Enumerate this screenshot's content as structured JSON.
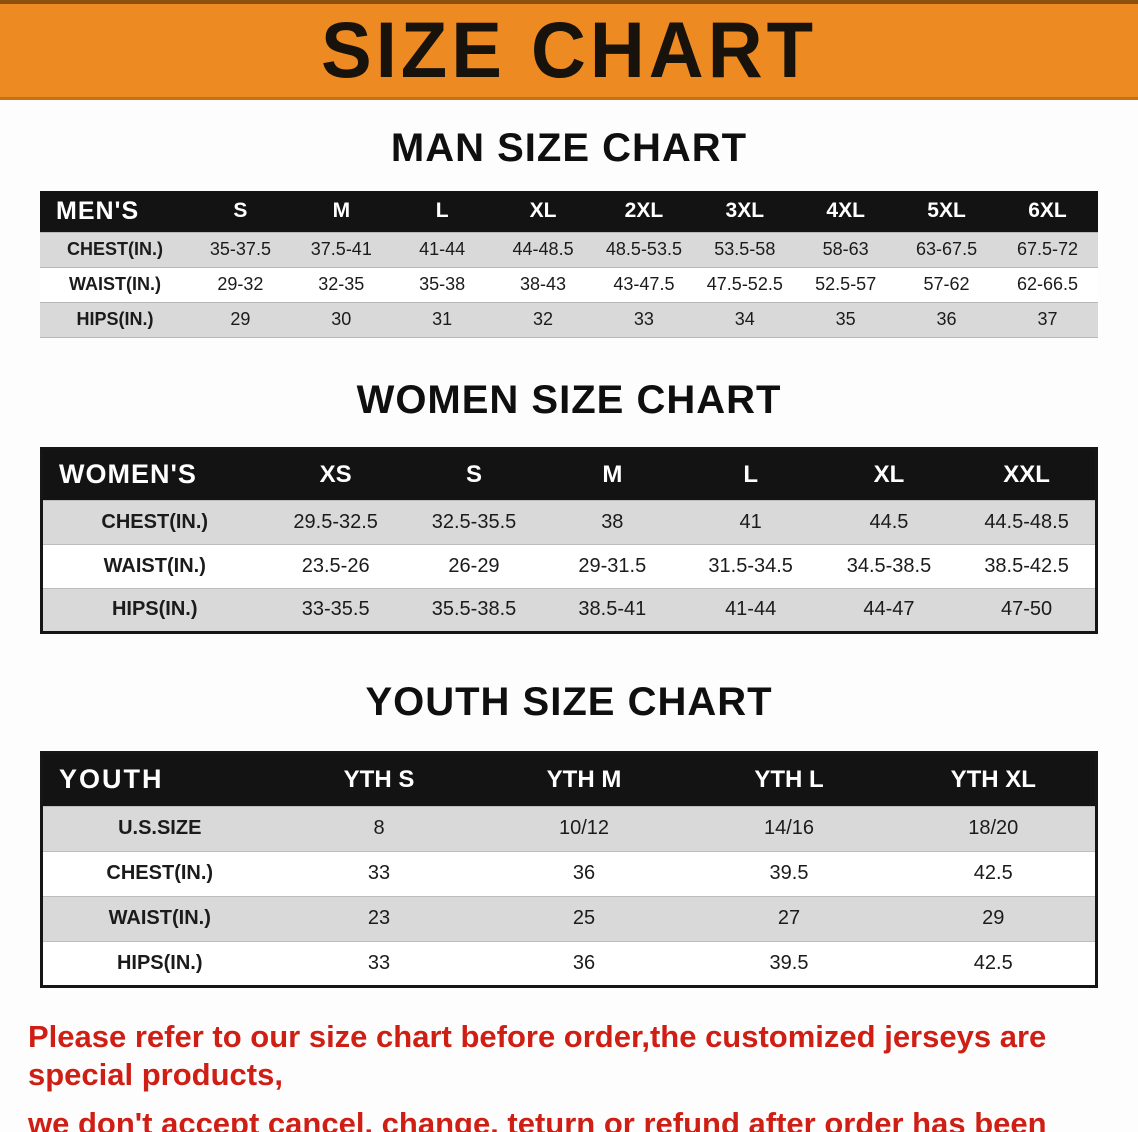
{
  "banner": {
    "title": "SIZE CHART",
    "bg_color": "#ED8A21"
  },
  "men": {
    "heading": "MAN SIZE CHART",
    "head": [
      "MEN'S",
      "S",
      "M",
      "L",
      "XL",
      "2XL",
      "3XL",
      "4XL",
      "5XL",
      "6XL"
    ],
    "rows": [
      [
        "CHEST(IN.)",
        "35-37.5",
        "37.5-41",
        "41-44",
        "44-48.5",
        "48.5-53.5",
        "53.5-58",
        "58-63",
        "63-67.5",
        "67.5-72"
      ],
      [
        "WAIST(IN.)",
        "29-32",
        "32-35",
        "35-38",
        "38-43",
        "43-47.5",
        "47.5-52.5",
        "52.5-57",
        "57-62",
        "62-66.5"
      ],
      [
        "HIPS(IN.)",
        "29",
        "30",
        "31",
        "32",
        "33",
        "34",
        "35",
        "36",
        "37"
      ]
    ]
  },
  "women": {
    "heading": "WOMEN SIZE CHART",
    "head": [
      "WOMEN'S",
      "XS",
      "S",
      "M",
      "L",
      "XL",
      "XXL"
    ],
    "rows": [
      [
        "CHEST(IN.)",
        "29.5-32.5",
        "32.5-35.5",
        "38",
        "41",
        "44.5",
        "44.5-48.5"
      ],
      [
        "WAIST(IN.)",
        "23.5-26",
        "26-29",
        "29-31.5",
        "31.5-34.5",
        "34.5-38.5",
        "38.5-42.5"
      ],
      [
        "HIPS(IN.)",
        "33-35.5",
        "35.5-38.5",
        "38.5-41",
        "41-44",
        "44-47",
        "47-50"
      ]
    ]
  },
  "youth": {
    "heading": "YOUTH SIZE CHART",
    "head": [
      "YOUTH",
      "YTH S",
      "YTH M",
      "YTH L",
      "YTH XL"
    ],
    "rows": [
      [
        "U.S.SIZE",
        "8",
        "10/12",
        "14/16",
        "18/20"
      ],
      [
        "CHEST(IN.)",
        "33",
        "36",
        "39.5",
        "42.5"
      ],
      [
        "WAIST(IN.)",
        "23",
        "25",
        "27",
        "29"
      ],
      [
        "HIPS(IN.)",
        "33",
        "36",
        "39.5",
        "42.5"
      ]
    ]
  },
  "footer": {
    "line1": "Please refer to our size chart before order,the customized jerseys are special products,",
    "line2": "we don't accept cancel, change, teturn or refund after order has been placed!",
    "color": "#cf1f15"
  }
}
